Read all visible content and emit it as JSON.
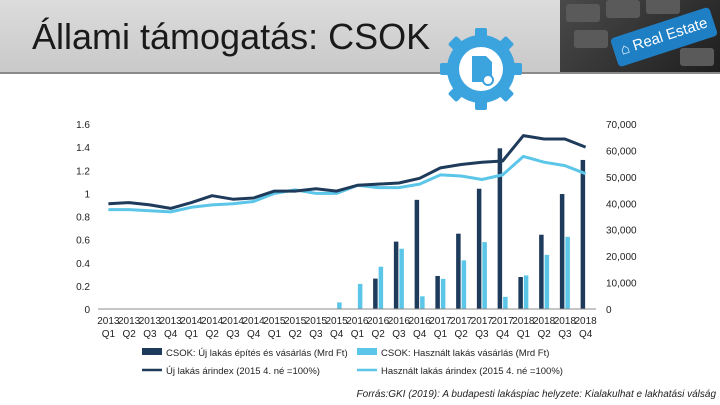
{
  "page": {
    "title": "Állami támogatás: CSOK",
    "image_label": "Real Estate"
  },
  "source": "Forrás:GKI (2019): A budapesti lakáspiac helyzete: Kialakulhat e lakhatási válság",
  "colors": {
    "new_bar": "#1f3b5c",
    "used_bar": "#5bc6e8",
    "new_line": "#1f3b5c",
    "used_line": "#5bc6e8"
  },
  "chart_data": {
    "type": "bar",
    "categories": [
      "2013 Q1",
      "2013 Q2",
      "2013 Q3",
      "2013 Q4",
      "2014 Q1",
      "2014 Q2",
      "2014 Q3",
      "2014 Q4",
      "2015 Q1",
      "2015 Q2",
      "2015 Q3",
      "2015 Q4",
      "2016 Q1",
      "2016 Q2",
      "2016 Q3",
      "2016 Q4",
      "2017 Q1",
      "2017 Q2",
      "2017 Q3",
      "2017 Q4",
      "2018 Q1",
      "2018 Q2",
      "2018 Q3",
      "2018 Q4"
    ],
    "category_years": [
      "2013",
      "2013",
      "2013",
      "2013",
      "2014",
      "2014",
      "2014",
      "2014",
      "2015",
      "2015",
      "2015",
      "2015",
      "2016",
      "2016",
      "2016",
      "2016",
      "2017",
      "2017",
      "2017",
      "2017",
      "2018",
      "2018",
      "2018",
      "2018"
    ],
    "category_quarters": [
      "Q1",
      "Q2",
      "Q3",
      "Q4",
      "Q1",
      "Q2",
      "Q3",
      "Q4",
      "Q1",
      "Q2",
      "Q3",
      "Q4",
      "Q1",
      "Q2",
      "Q3",
      "Q4",
      "Q1",
      "Q2",
      "Q3",
      "Q4",
      "Q1",
      "Q2",
      "Q3",
      "Q4"
    ],
    "left_axis": {
      "ylim": [
        0,
        1.6
      ],
      "ticks": [
        "0",
        "0.2",
        "0.4",
        "0.6",
        "0.8",
        "1",
        "1.2",
        "1.4",
        "1.6"
      ]
    },
    "right_axis": {
      "ylim": [
        0,
        70000
      ],
      "ticks": [
        "0",
        "10,000",
        "20,000",
        "30,000",
        "40,000",
        "50,000",
        "60,000",
        "70,000"
      ]
    },
    "series": [
      {
        "name": "CSOK: Új lakás építés és vásárlás (Mrd Ft)",
        "kind": "bar",
        "axis": "right",
        "values": [
          0,
          0,
          0,
          0,
          0,
          0,
          0,
          0,
          0,
          0,
          0,
          0,
          0,
          11500,
          25500,
          41300,
          12500,
          28500,
          45500,
          60800,
          12100,
          28100,
          43500,
          56400
        ]
      },
      {
        "name": "CSOK: Használt lakás vásárlás (Mrd Ft)",
        "kind": "bar",
        "axis": "right",
        "values": [
          0,
          0,
          0,
          0,
          0,
          0,
          0,
          0,
          0,
          0,
          0,
          2500,
          9500,
          16000,
          22800,
          4800,
          11400,
          18400,
          25300,
          4600,
          12700,
          20500,
          27300,
          0
        ]
      },
      {
        "name": "Új lakás árindex (2015 4. né =100%)",
        "kind": "line",
        "axis": "left",
        "values": [
          0.91,
          0.92,
          0.9,
          0.87,
          0.92,
          0.98,
          0.95,
          0.96,
          1.02,
          1.02,
          1.04,
          1.02,
          1.07,
          1.08,
          1.09,
          1.13,
          1.22,
          1.25,
          1.27,
          1.28,
          1.5,
          1.47,
          1.47,
          1.4
        ]
      },
      {
        "name": "Használt lakás árindex (2015 4. né =100%)",
        "kind": "line",
        "axis": "left",
        "values": [
          0.86,
          0.86,
          0.85,
          0.84,
          0.88,
          0.9,
          0.91,
          0.93,
          1.0,
          1.03,
          1.0,
          1.0,
          1.07,
          1.05,
          1.05,
          1.08,
          1.16,
          1.15,
          1.12,
          1.16,
          1.32,
          1.27,
          1.24,
          1.17
        ]
      }
    ],
    "legend_placement": "bottom",
    "grid": false
  }
}
